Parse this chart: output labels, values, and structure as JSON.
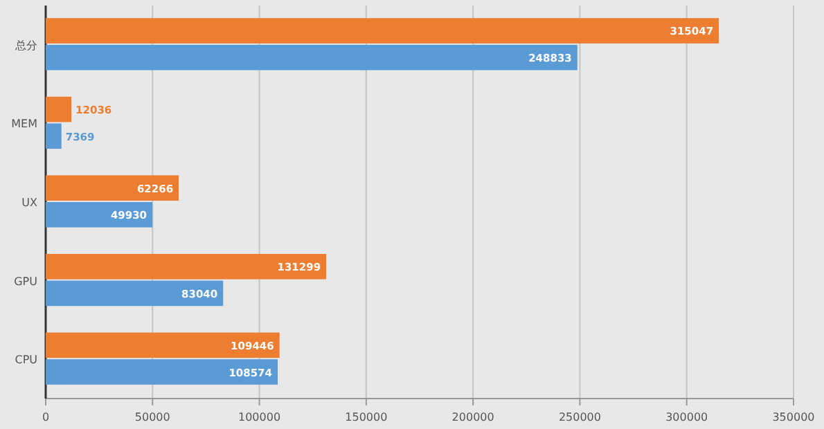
{
  "chart_data": {
    "type": "bar",
    "orientation": "horizontal",
    "categories": [
      "总分",
      "MEM",
      "UX",
      "GPU",
      "CPU"
    ],
    "series": [
      {
        "color": "#ed7d31",
        "values": [
          315047,
          12036,
          62266,
          131299,
          109446
        ]
      },
      {
        "color": "#5b9bd5",
        "values": [
          248833,
          7369,
          49930,
          83040,
          108574
        ]
      }
    ],
    "xlim": [
      0,
      350000
    ],
    "xticks": [
      0,
      50000,
      100000,
      150000,
      200000,
      250000,
      300000,
      350000
    ],
    "grid": "x",
    "data_labels": true
  }
}
